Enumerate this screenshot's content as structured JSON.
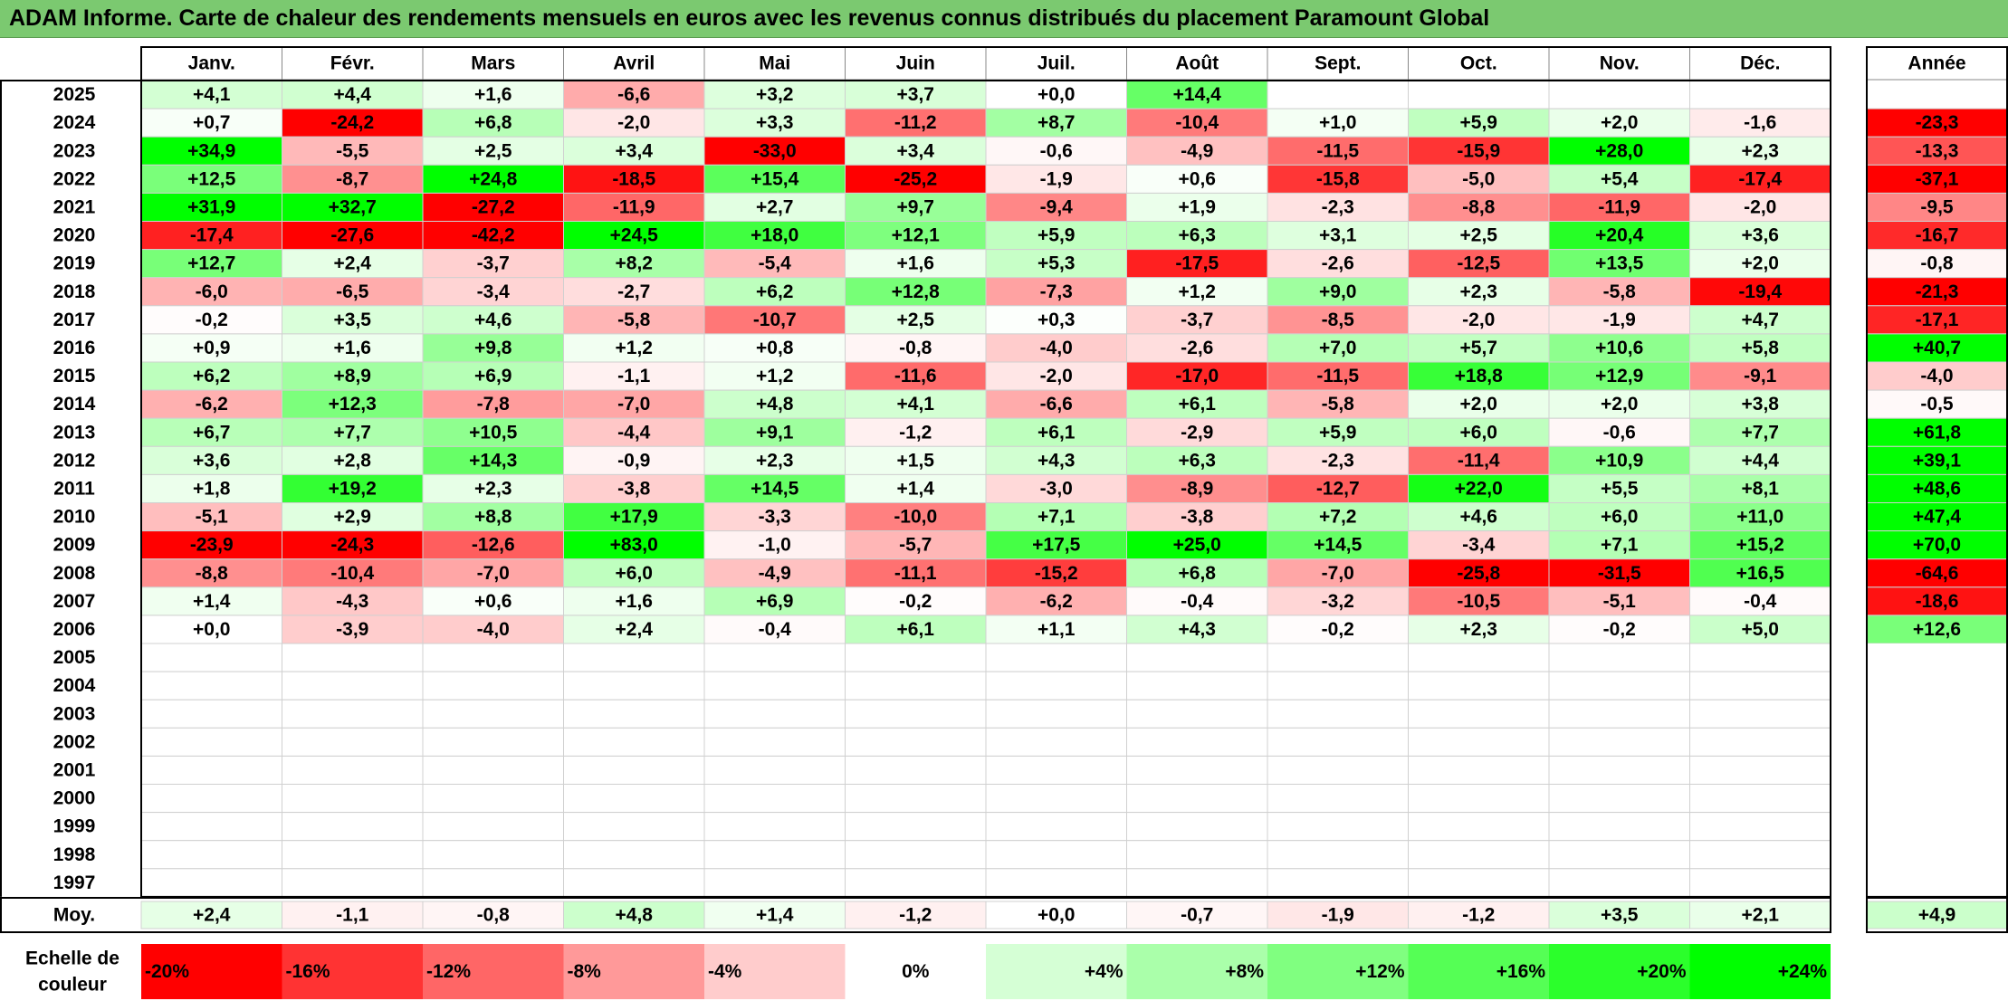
{
  "title": "ADAM Informe. Carte de chaleur des rendements mensuels en euros avec les revenus connus distribués du placement Paramount Global",
  "chart_data": {
    "type": "heatmap",
    "months": [
      "Janv.",
      "Févr.",
      "Mars",
      "Avril",
      "Mai",
      "Juin",
      "Juil.",
      "Août",
      "Sept.",
      "Oct.",
      "Nov.",
      "Déc."
    ],
    "year_header": "Année",
    "rows": [
      {
        "year": "2025",
        "values": [
          4.1,
          4.4,
          1.6,
          -6.6,
          3.2,
          3.7,
          0.0,
          14.4,
          null,
          null,
          null,
          null
        ],
        "annual": null
      },
      {
        "year": "2024",
        "values": [
          0.7,
          -24.2,
          6.8,
          -2.0,
          3.3,
          -11.2,
          8.7,
          -10.4,
          1.0,
          5.9,
          2.0,
          -1.6
        ],
        "annual": -23.3
      },
      {
        "year": "2023",
        "values": [
          34.9,
          -5.5,
          2.5,
          3.4,
          -33.0,
          3.4,
          -0.6,
          -4.9,
          -11.5,
          -15.9,
          28.0,
          2.3
        ],
        "annual": -13.3
      },
      {
        "year": "2022",
        "values": [
          12.5,
          -8.7,
          24.8,
          -18.5,
          15.4,
          -25.2,
          -1.9,
          0.6,
          -15.8,
          -5.0,
          5.4,
          -17.4
        ],
        "annual": -37.1
      },
      {
        "year": "2021",
        "values": [
          31.9,
          32.7,
          -27.2,
          -11.9,
          2.7,
          9.7,
          -9.4,
          1.9,
          -2.3,
          -8.8,
          -11.9,
          -2.0
        ],
        "annual": -9.5
      },
      {
        "year": "2020",
        "values": [
          -17.4,
          -27.6,
          -42.2,
          24.5,
          18.0,
          12.1,
          5.9,
          6.3,
          3.1,
          2.5,
          20.4,
          3.6
        ],
        "annual": -16.7
      },
      {
        "year": "2019",
        "values": [
          12.7,
          2.4,
          -3.7,
          8.2,
          -5.4,
          1.6,
          5.3,
          -17.5,
          -2.6,
          -12.5,
          13.5,
          2.0
        ],
        "annual": -0.8
      },
      {
        "year": "2018",
        "values": [
          -6.0,
          -6.5,
          -3.4,
          -2.7,
          6.2,
          12.8,
          -7.3,
          1.2,
          9.0,
          2.3,
          -5.8,
          -19.4
        ],
        "annual": -21.3
      },
      {
        "year": "2017",
        "values": [
          -0.2,
          3.5,
          4.6,
          -5.8,
          -10.7,
          2.5,
          0.3,
          -3.7,
          -8.5,
          -2.0,
          -1.9,
          4.7
        ],
        "annual": -17.1
      },
      {
        "year": "2016",
        "values": [
          0.9,
          1.6,
          9.8,
          1.2,
          0.8,
          -0.8,
          -4.0,
          -2.6,
          7.0,
          5.7,
          10.6,
          5.8
        ],
        "annual": 40.7
      },
      {
        "year": "2015",
        "values": [
          6.2,
          8.9,
          6.9,
          -1.1,
          1.2,
          -11.6,
          -2.0,
          -17.0,
          -11.5,
          18.8,
          12.9,
          -9.1
        ],
        "annual": -4.0
      },
      {
        "year": "2014",
        "values": [
          -6.2,
          12.3,
          -7.8,
          -7.0,
          4.8,
          4.1,
          -6.6,
          6.1,
          -5.8,
          2.0,
          2.0,
          3.8
        ],
        "annual": -0.5
      },
      {
        "year": "2013",
        "values": [
          6.7,
          7.7,
          10.5,
          -4.4,
          9.1,
          -1.2,
          6.1,
          -2.9,
          5.9,
          6.0,
          -0.6,
          7.7
        ],
        "annual": 61.8
      },
      {
        "year": "2012",
        "values": [
          3.6,
          2.8,
          14.3,
          -0.9,
          2.3,
          1.5,
          4.3,
          6.3,
          -2.3,
          -11.4,
          10.9,
          4.4
        ],
        "annual": 39.1
      },
      {
        "year": "2011",
        "values": [
          1.8,
          19.2,
          2.3,
          -3.8,
          14.5,
          1.4,
          -3.0,
          -8.9,
          -12.7,
          22.0,
          5.5,
          8.1
        ],
        "annual": 48.6
      },
      {
        "year": "2010",
        "values": [
          -5.1,
          2.9,
          8.8,
          17.9,
          -3.3,
          -10.0,
          7.1,
          -3.8,
          7.2,
          4.6,
          6.0,
          11.0
        ],
        "annual": 47.4
      },
      {
        "year": "2009",
        "values": [
          -23.9,
          -24.3,
          -12.6,
          83.0,
          -1.0,
          -5.7,
          17.5,
          25.0,
          14.5,
          -3.4,
          7.1,
          15.2
        ],
        "annual": 70.0
      },
      {
        "year": "2008",
        "values": [
          -8.8,
          -10.4,
          -7.0,
          6.0,
          -4.9,
          -11.1,
          -15.2,
          6.8,
          -7.0,
          -25.8,
          -31.5,
          16.5
        ],
        "annual": -64.6
      },
      {
        "year": "2007",
        "values": [
          1.4,
          -4.3,
          0.6,
          1.6,
          6.9,
          -0.2,
          -6.2,
          -0.4,
          -3.2,
          -10.5,
          -5.1,
          -0.4
        ],
        "annual": -18.6
      },
      {
        "year": "2006",
        "values": [
          0.0,
          -3.9,
          -4.0,
          2.4,
          -0.4,
          6.1,
          1.1,
          4.3,
          -0.2,
          2.3,
          -0.2,
          5.0
        ],
        "annual": 12.6
      },
      {
        "year": "2005",
        "values": [
          null,
          null,
          null,
          null,
          null,
          null,
          null,
          null,
          null,
          null,
          null,
          null
        ],
        "annual": null
      },
      {
        "year": "2004",
        "values": [
          null,
          null,
          null,
          null,
          null,
          null,
          null,
          null,
          null,
          null,
          null,
          null
        ],
        "annual": null
      },
      {
        "year": "2003",
        "values": [
          null,
          null,
          null,
          null,
          null,
          null,
          null,
          null,
          null,
          null,
          null,
          null
        ],
        "annual": null
      },
      {
        "year": "2002",
        "values": [
          null,
          null,
          null,
          null,
          null,
          null,
          null,
          null,
          null,
          null,
          null,
          null
        ],
        "annual": null
      },
      {
        "year": "2001",
        "values": [
          null,
          null,
          null,
          null,
          null,
          null,
          null,
          null,
          null,
          null,
          null,
          null
        ],
        "annual": null
      },
      {
        "year": "2000",
        "values": [
          null,
          null,
          null,
          null,
          null,
          null,
          null,
          null,
          null,
          null,
          null,
          null
        ],
        "annual": null
      },
      {
        "year": "1999",
        "values": [
          null,
          null,
          null,
          null,
          null,
          null,
          null,
          null,
          null,
          null,
          null,
          null
        ],
        "annual": null
      },
      {
        "year": "1998",
        "values": [
          null,
          null,
          null,
          null,
          null,
          null,
          null,
          null,
          null,
          null,
          null,
          null
        ],
        "annual": null
      },
      {
        "year": "1997",
        "values": [
          null,
          null,
          null,
          null,
          null,
          null,
          null,
          null,
          null,
          null,
          null,
          null
        ],
        "annual": null
      }
    ],
    "average": {
      "label": "Moy.",
      "values": [
        2.4,
        -1.1,
        -0.8,
        4.8,
        1.4,
        -1.2,
        0.0,
        -0.7,
        -1.9,
        -1.2,
        3.5,
        2.1
      ],
      "annual": 4.9
    },
    "color_scale": {
      "label_line1": "Echelle de",
      "label_line2": "couleur",
      "steps": [
        {
          "label": "-20%",
          "value": -20
        },
        {
          "label": "-16%",
          "value": -16
        },
        {
          "label": "-12%",
          "value": -12
        },
        {
          "label": "-8%",
          "value": -8
        },
        {
          "label": "-4%",
          "value": -4
        },
        {
          "label": "0%",
          "value": 0
        },
        {
          "label": "+4%",
          "value": 4
        },
        {
          "label": "+8%",
          "value": 8
        },
        {
          "label": "+12%",
          "value": 12
        },
        {
          "label": "+16%",
          "value": 16
        },
        {
          "label": "+20%",
          "value": 20
        },
        {
          "label": "+24%",
          "value": 24
        }
      ]
    },
    "colors": {
      "negative": "#ff0000",
      "neutral": "#ffffff",
      "positive": "#00ff00",
      "title_bar": "#7bc970"
    }
  }
}
